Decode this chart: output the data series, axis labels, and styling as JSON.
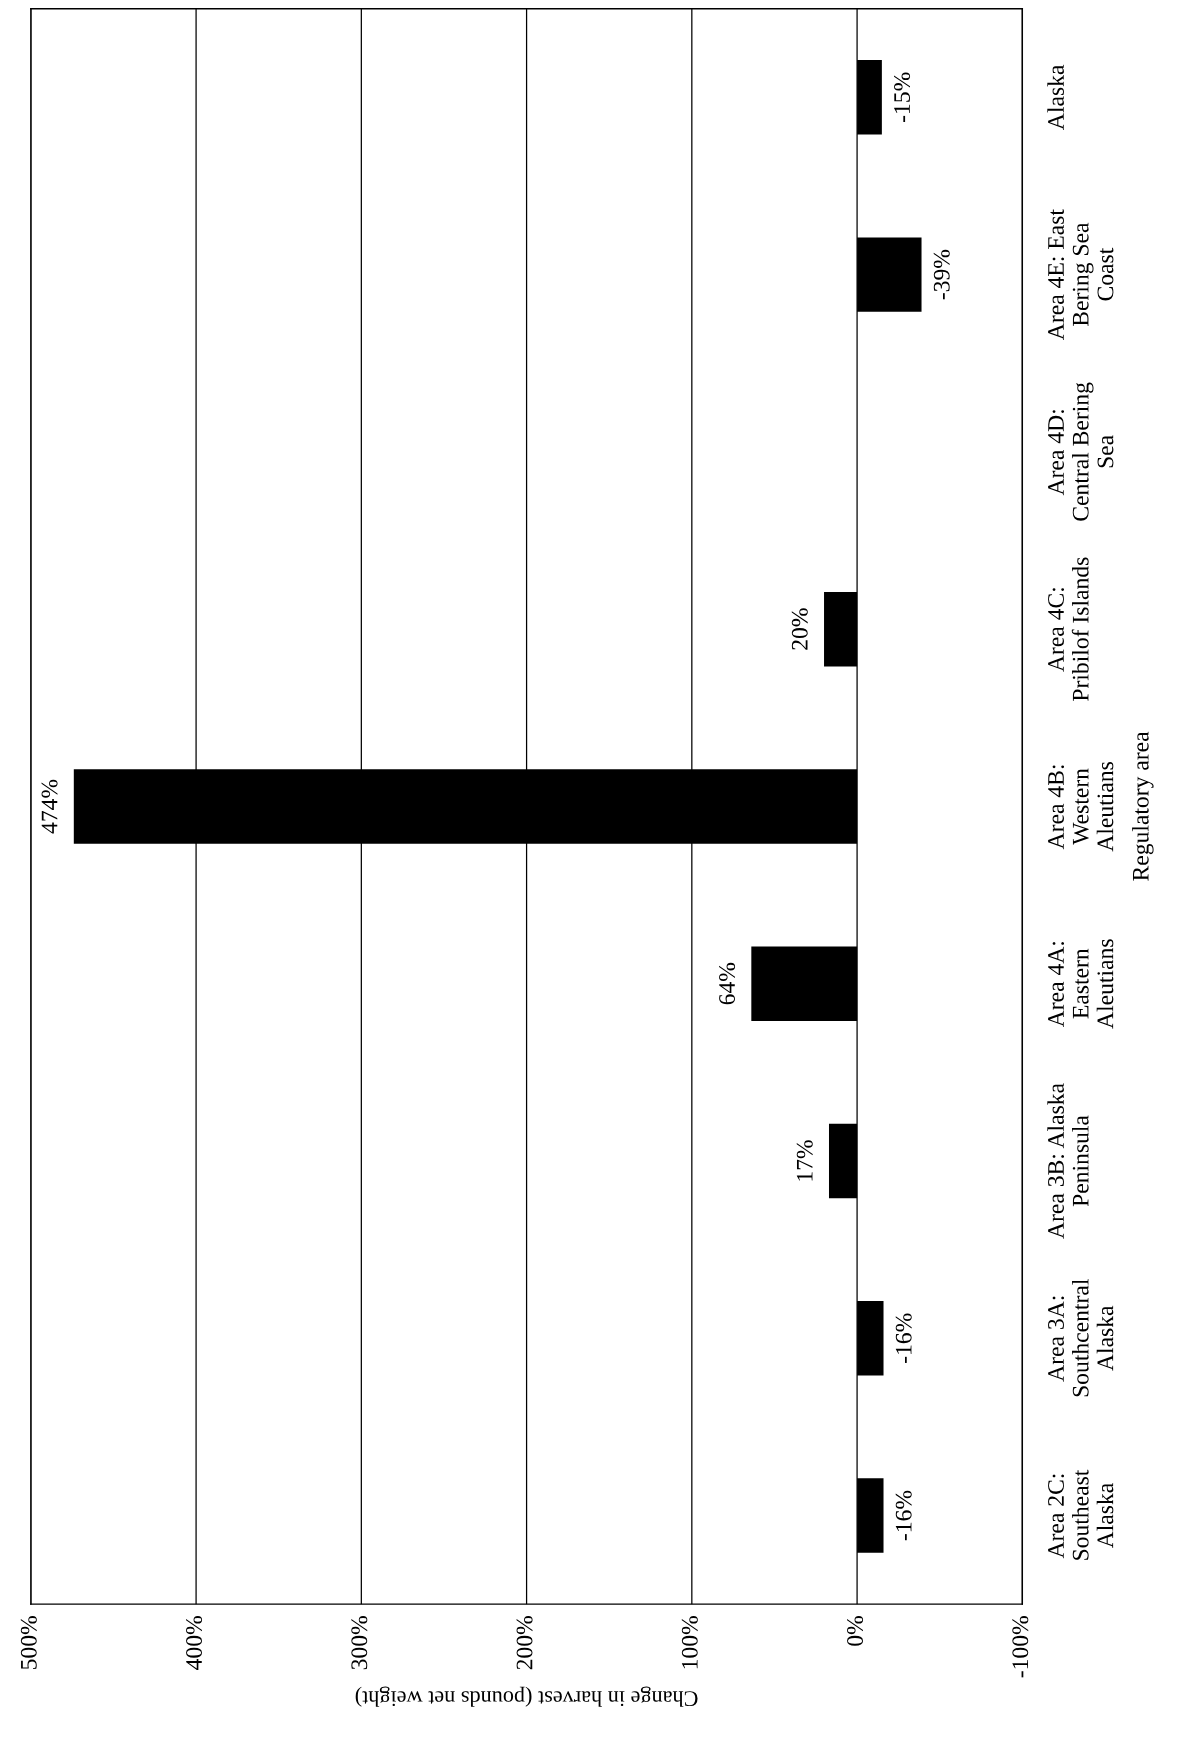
{
  "chart_data": {
    "type": "bar",
    "orientation": "horizontal",
    "xlabel": "Change in harvest (pounds net weight)",
    "ylabel": "Regulatory area",
    "categories": [
      "Alaska",
      "Area 4E: East\nBering Sea\nCoast",
      "Area 4D:\nCentral Bering\nSea",
      "Area 4C:\nPribilof Islands",
      "Area 4B:\nWestern\nAleutians",
      "Area 4A:\nEastern\nAleutians",
      "Area 3B: Alaska\nPeninsula",
      "Area 3A:\nSouthcentral\nAlaska",
      "Area 2C:\nSoutheast\nAlaska"
    ],
    "values": [
      -15,
      -39,
      null,
      20,
      474,
      64,
      17,
      -16,
      -16
    ],
    "value_labels": [
      "-15%",
      "-39%",
      null,
      "20%",
      "474%",
      "64%",
      "17%",
      "-16%",
      "-16%"
    ],
    "color": "#000000",
    "xlim": [
      500,
      -100
    ],
    "xticks": [
      {
        "value": 500,
        "label": "500%"
      },
      {
        "value": 400,
        "label": "400%"
      },
      {
        "value": 300,
        "label": "300%"
      },
      {
        "value": 200,
        "label": "200%"
      },
      {
        "value": 100,
        "label": "100%"
      },
      {
        "value": 0,
        "label": "0%"
      },
      {
        "value": -100,
        "label": "-100%"
      }
    ],
    "grid": "x",
    "legend": false
  }
}
